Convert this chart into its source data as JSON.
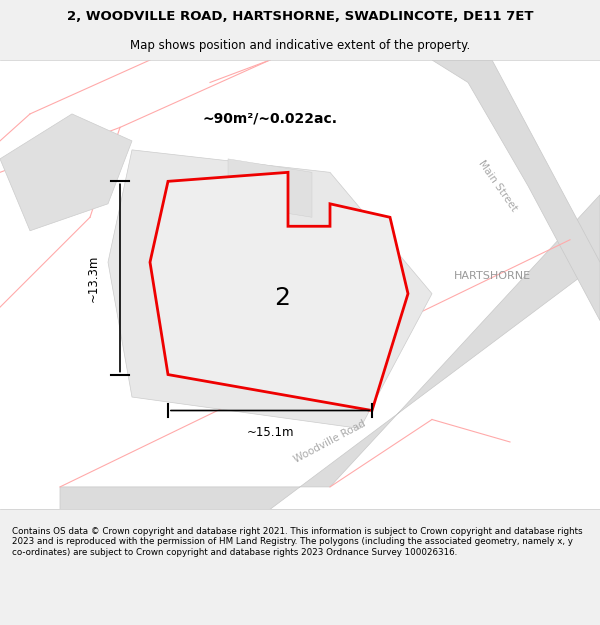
{
  "title_line1": "2, WOODVILLE ROAD, HARTSHORNE, SWADLINCOTE, DE11 7ET",
  "title_line2": "Map shows position and indicative extent of the property.",
  "footer_text": "Contains OS data © Crown copyright and database right 2021. This information is subject to Crown copyright and database rights 2023 and is reproduced with the permission of HM Land Registry. The polygons (including the associated geometry, namely x, y co-ordinates) are subject to Crown copyright and database rights 2023 Ordnance Survey 100026316.",
  "area_label": "~90m²/~0.022ac.",
  "width_label": "~15.1m",
  "height_label": "~13.3m",
  "plot_number": "2",
  "place_name": "HARTSHORNE",
  "road_name_1": "Main Street",
  "road_name_2": "Woodville Road",
  "bg_color": "#f5f5f5",
  "map_bg": "#ffffff",
  "plot_fill": "#e8e8e8",
  "plot_stroke": "#ff0000",
  "road_fill": "#e0e0e0",
  "road_stroke": "#cccccc",
  "boundary_color": "#ffcccc",
  "dark_road_fill": "#d0d0d0"
}
